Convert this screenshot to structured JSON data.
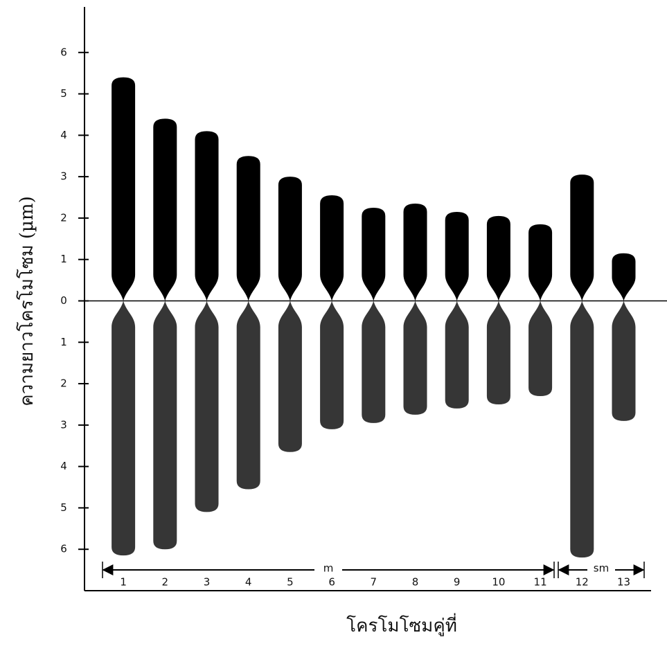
{
  "chart_data": {
    "type": "bar",
    "x_label": "โครโมโซมคู่ที่",
    "y_label": "ความยาวโครโมโซม (µm)",
    "categories": [
      "1",
      "2",
      "3",
      "4",
      "5",
      "6",
      "7",
      "8",
      "9",
      "10",
      "11",
      "12",
      "13"
    ],
    "series": [
      {
        "color": "#000000",
        "values": [
          5.4,
          4.4,
          4.1,
          3.5,
          3.0,
          2.55,
          2.25,
          2.35,
          2.15,
          2.05,
          1.85,
          3.05,
          1.15
        ]
      },
      {
        "color": "#363636",
        "values": [
          -6.15,
          -6.0,
          -5.1,
          -4.55,
          -3.65,
          -3.1,
          -2.95,
          -2.75,
          -2.6,
          -2.5,
          -2.3,
          -6.2,
          -2.9
        ]
      }
    ],
    "ylim": [
      -7,
      7.1
    ],
    "yticks": [
      {
        "value": -6,
        "label": "6"
      },
      {
        "value": -5,
        "label": "5"
      },
      {
        "value": -4,
        "label": "4"
      },
      {
        "value": -3,
        "label": "3"
      },
      {
        "value": -2,
        "label": "2"
      },
      {
        "value": -1,
        "label": "1"
      },
      0,
      1,
      2,
      3,
      4,
      5,
      6
    ],
    "annotations": [
      "m",
      "sm"
    ],
    "grid": false
  }
}
